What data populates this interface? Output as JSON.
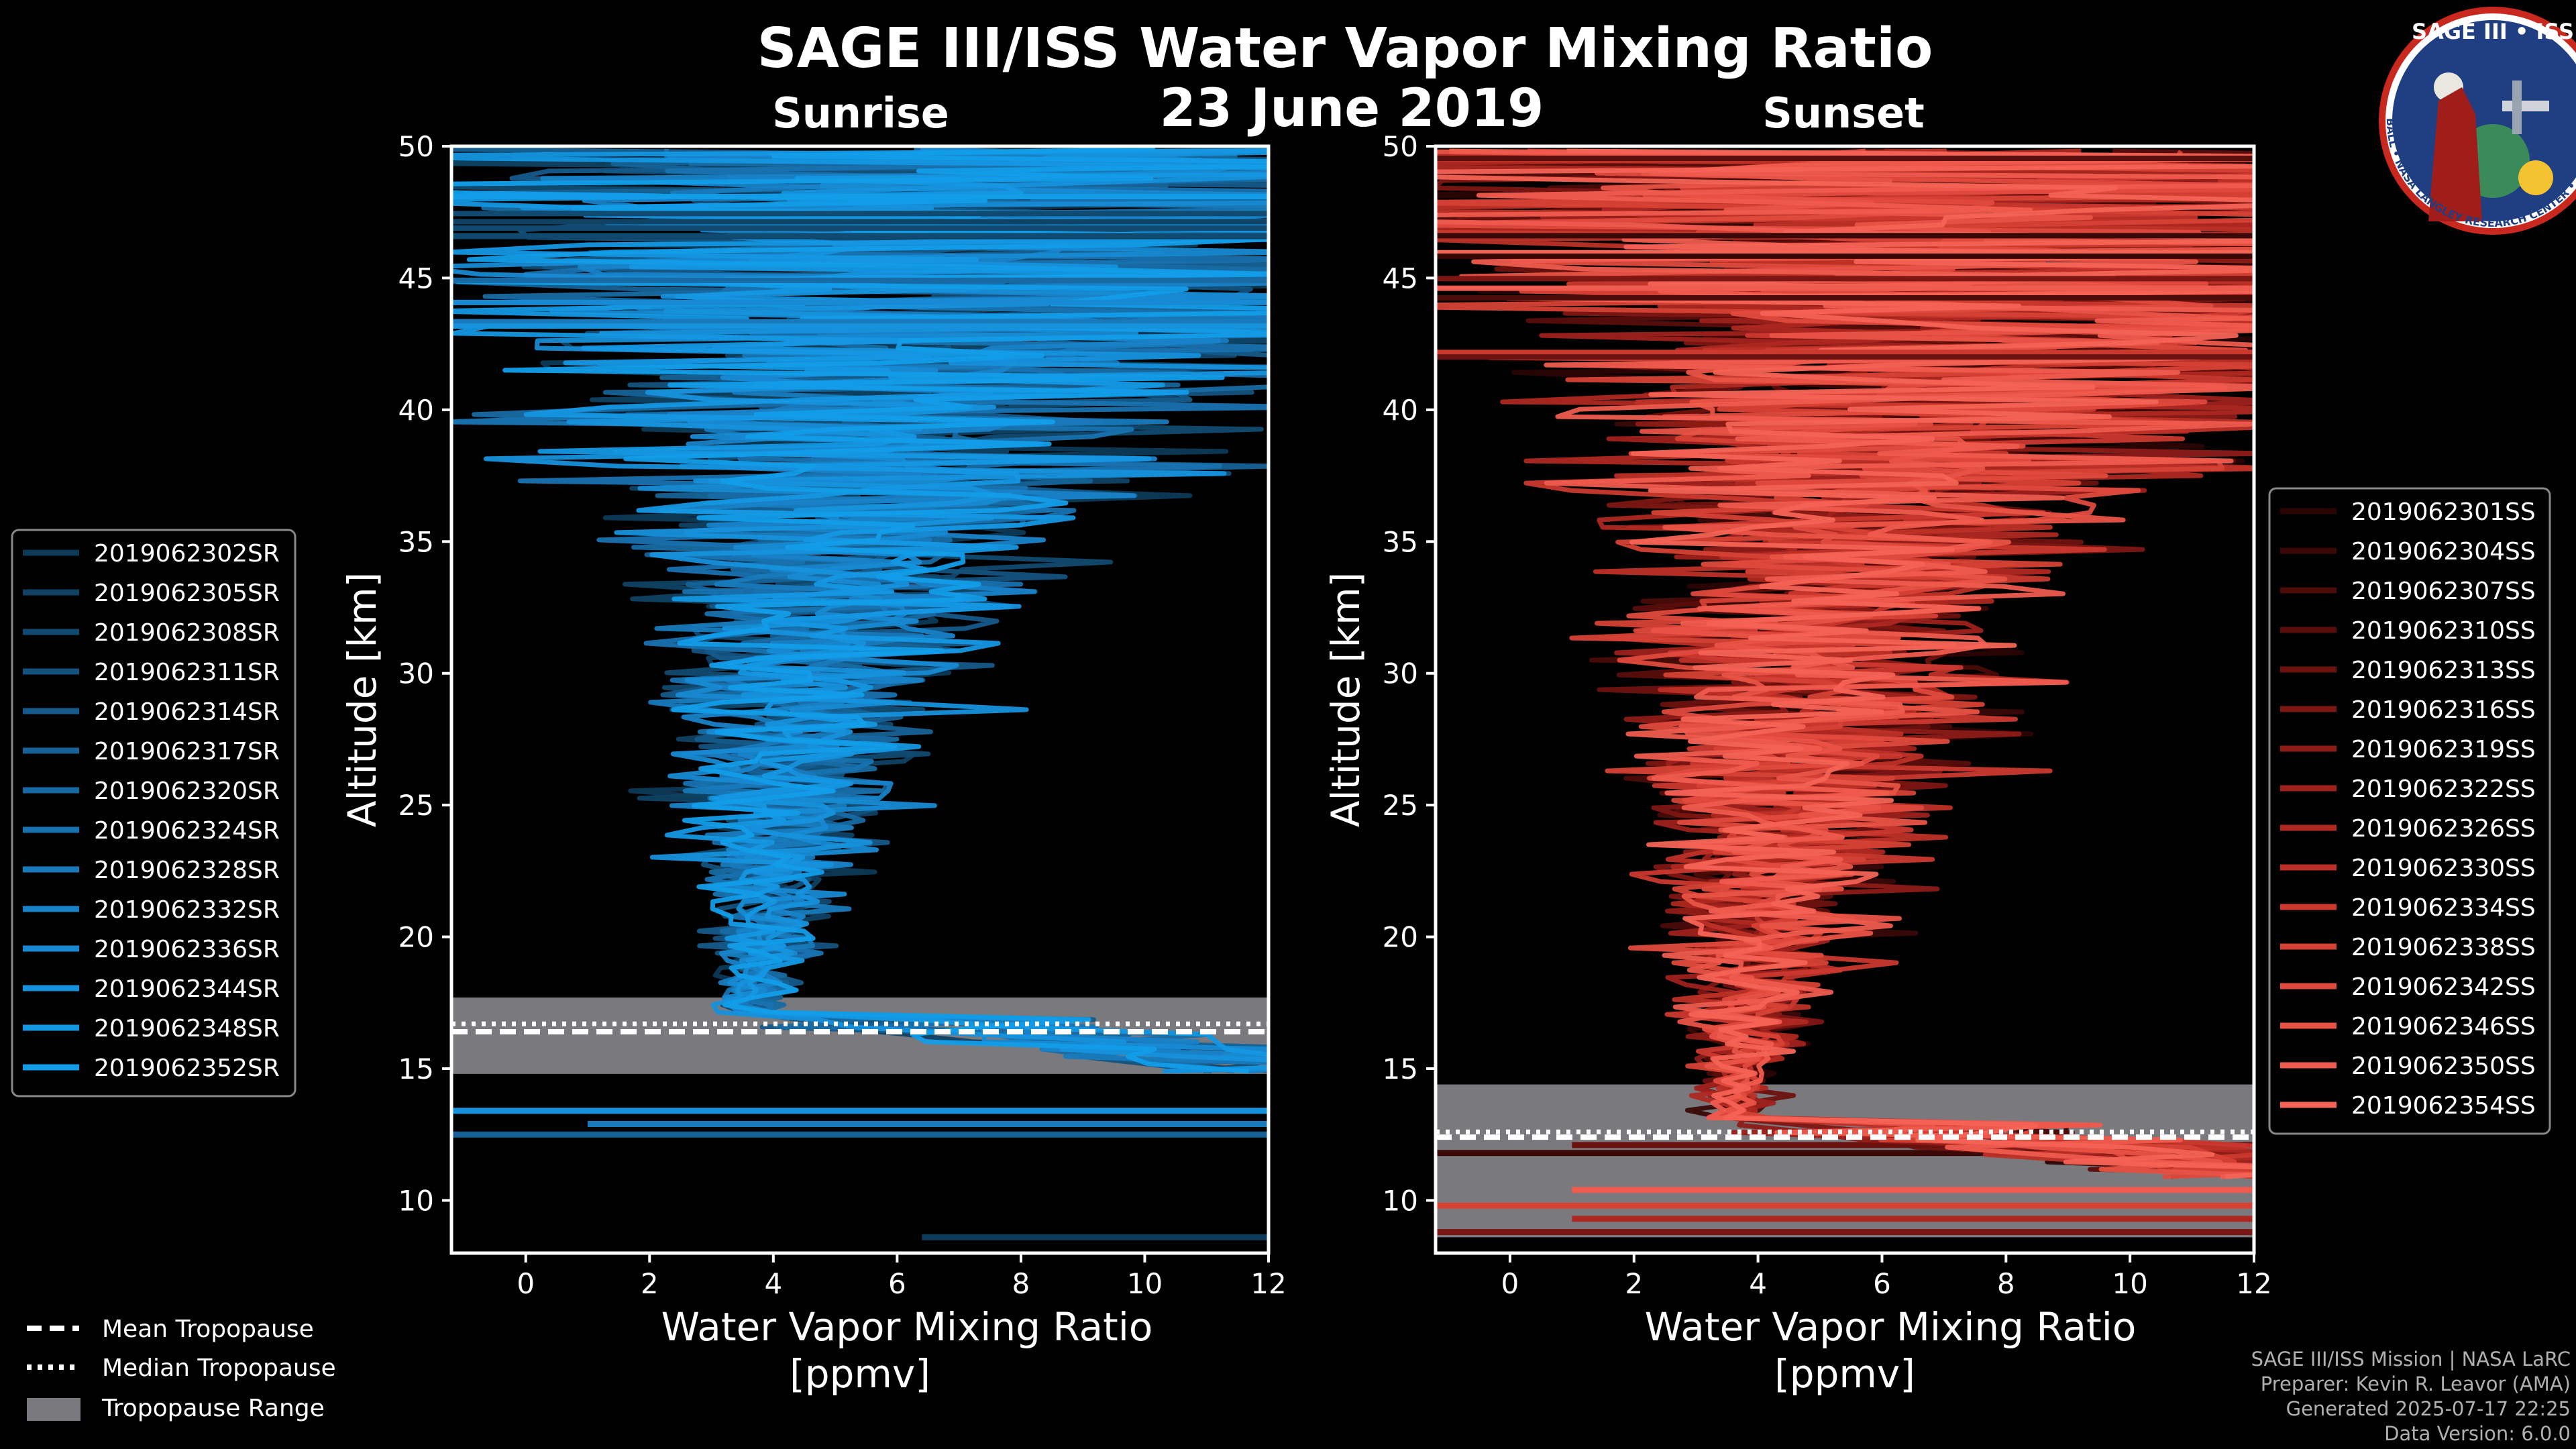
{
  "chart_data": {
    "type": "line",
    "title": "SAGE III/ISS Water Vapor Mixing Ratio",
    "subtitle": "23 June 2019",
    "panels": [
      {
        "name": "Sunrise",
        "xlabel": "Water Vapor Mixing Ratio",
        "xunit": "[ppmv]",
        "ylabel": "Altitude [km]",
        "xlim": [
          -1.2,
          12
        ],
        "ylim": [
          8,
          50
        ],
        "xticks": [
          "0",
          "2",
          "4",
          "6",
          "8",
          "10",
          "12"
        ],
        "yticks": [
          "10",
          "15",
          "20",
          "25",
          "30",
          "35",
          "40",
          "45",
          "50"
        ],
        "tropopause": {
          "mean": 16.4,
          "median": 16.7,
          "range": [
            14.8,
            17.7
          ]
        },
        "noise_lines_at": [
          12.5,
          12.9,
          13.4,
          8.6
        ],
        "series": [
          {
            "name": "2019062302SR",
            "color": "#0d3a57"
          },
          {
            "name": "2019062305SR",
            "color": "#0f4263"
          },
          {
            "name": "2019062308SR",
            "color": "#114a70"
          },
          {
            "name": "2019062311SR",
            "color": "#13527d"
          },
          {
            "name": "2019062314SR",
            "color": "#155a8a"
          },
          {
            "name": "2019062317SR",
            "color": "#166296"
          },
          {
            "name": "2019062320SR",
            "color": "#176aa3"
          },
          {
            "name": "2019062324SR",
            "color": "#1872b0"
          },
          {
            "name": "2019062328SR",
            "color": "#187abc"
          },
          {
            "name": "2019062332SR",
            "color": "#1882c8"
          },
          {
            "name": "2019062336SR",
            "color": "#178ad3"
          },
          {
            "name": "2019062344SR",
            "color": "#1691dc"
          },
          {
            "name": "2019062348SR",
            "color": "#1497e3"
          },
          {
            "name": "2019062352SR",
            "color": "#129de9"
          }
        ]
      },
      {
        "name": "Sunset",
        "xlabel": "Water Vapor Mixing Ratio",
        "xunit": "[ppmv]",
        "ylabel": "Altitude [km]",
        "xlim": [
          -1.2,
          12
        ],
        "ylim": [
          8,
          50
        ],
        "xticks": [
          "0",
          "2",
          "4",
          "6",
          "8",
          "10",
          "12"
        ],
        "yticks": [
          "10",
          "15",
          "20",
          "25",
          "30",
          "35",
          "40",
          "45",
          "50"
        ],
        "tropopause": {
          "mean": 12.4,
          "median": 12.6,
          "range": [
            8.6,
            14.4
          ]
        },
        "noise_lines_at": [
          8.8,
          9.3,
          9.8,
          10.4,
          11.8,
          12.1
        ],
        "series": [
          {
            "name": "2019062301SS",
            "color": "#2a0504"
          },
          {
            "name": "2019062304SS",
            "color": "#390807"
          },
          {
            "name": "2019062307SS",
            "color": "#4a0b09"
          },
          {
            "name": "2019062310SS",
            "color": "#5a0e0c"
          },
          {
            "name": "2019062313SS",
            "color": "#6b120f"
          },
          {
            "name": "2019062316SS",
            "color": "#7c1613"
          },
          {
            "name": "2019062319SS",
            "color": "#8d1b17"
          },
          {
            "name": "2019062322SS",
            "color": "#9e211c"
          },
          {
            "name": "2019062326SS",
            "color": "#ae2821"
          },
          {
            "name": "2019062330SS",
            "color": "#bd3027"
          },
          {
            "name": "2019062334SS",
            "color": "#ca382e"
          },
          {
            "name": "2019062338SS",
            "color": "#d64135"
          },
          {
            "name": "2019062342SS",
            "color": "#e04a3d"
          },
          {
            "name": "2019062346SS",
            "color": "#e85346"
          },
          {
            "name": "2019062350SS",
            "color": "#ef5b4e"
          },
          {
            "name": "2019062354SS",
            "color": "#f46355"
          }
        ]
      }
    ],
    "legend_shared": [
      {
        "name": "Mean Tropopause",
        "style": "dashed"
      },
      {
        "name": "Median Tropopause",
        "style": "dotted"
      },
      {
        "name": "Tropopause Range",
        "style": "patch"
      }
    ]
  },
  "logo": {
    "text": "SAGE III • ISS",
    "ring_text": "BALL • NASA LANGLEY RESEARCH CENTER • TAS-I • ESA"
  },
  "credits": [
    "SAGE III/ISS Mission | NASA LaRC",
    "Preparer: Kevin R. Leavor (AMA)",
    "Generated 2025-07-17 22:25",
    "Data Version: 6.0.0"
  ],
  "colors": {
    "background": "#000000",
    "tropopause_range": "#7a7a7e",
    "axis": "#ffffff"
  }
}
